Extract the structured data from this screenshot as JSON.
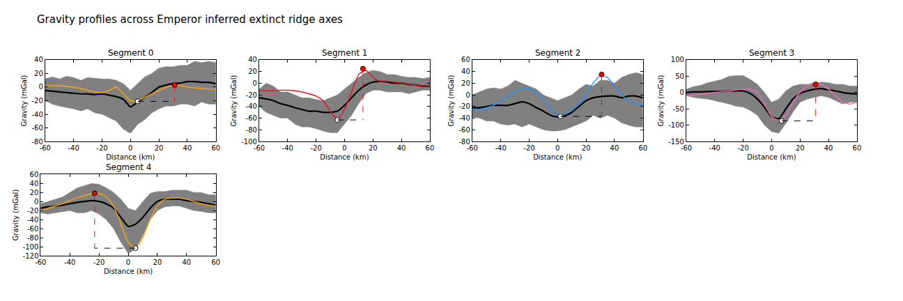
{
  "title": "Gravity profiles across Emperor inferred extinct ridge axes",
  "chart_data": [
    {
      "type": "line",
      "title": "Segment 0",
      "x_label": "Distance (km)",
      "y_label": "Gravity (mGal)",
      "xlim": [
        -60,
        60
      ],
      "xticks": [
        -60,
        -40,
        -20,
        0,
        20,
        40,
        60
      ],
      "ylim": [
        -80,
        40
      ],
      "yticks": [
        -80,
        -60,
        -40,
        -20,
        0,
        20,
        40
      ],
      "x": [
        -60,
        -55,
        -50,
        -45,
        -40,
        -35,
        -30,
        -25,
        -20,
        -15,
        -10,
        -5,
        0,
        5,
        10,
        15,
        20,
        25,
        30,
        35,
        40,
        45,
        50,
        55,
        60
      ],
      "series": [
        {
          "type": "band",
          "color": "#808080",
          "lower": [
            -20,
            -25,
            -28,
            -30,
            -32,
            -35,
            -32,
            -38,
            -40,
            -45,
            -50,
            -62,
            -68,
            -55,
            -48,
            -38,
            -32,
            -28,
            -28,
            -25,
            -25,
            -28,
            -22,
            -25,
            -25
          ],
          "upper": [
            12,
            15,
            12,
            16,
            14,
            10,
            14,
            13,
            12,
            12,
            10,
            5,
            -5,
            5,
            15,
            20,
            28,
            30,
            30,
            32,
            32,
            38,
            36,
            38,
            36
          ]
        },
        {
          "type": "line",
          "color": "#000000",
          "values": [
            -5,
            -6,
            -7,
            -8,
            -9,
            -10,
            -10,
            -11,
            -10,
            -12,
            -14,
            -18,
            -29,
            -22,
            -15,
            -8,
            0,
            3,
            5,
            6,
            8,
            8,
            7,
            7,
            5
          ]
        },
        {
          "type": "line",
          "color": "#ffa500",
          "values": [
            2,
            2,
            2,
            1,
            0,
            -2,
            -5,
            -7,
            -8,
            -5,
            0,
            -10,
            -20,
            -20,
            -15,
            -10,
            -5,
            0,
            2,
            2,
            0,
            -1,
            -2,
            -3,
            -3
          ]
        },
        {
          "type": "scatter",
          "x": [
            31,
            5
          ],
          "values": [
            3,
            -21
          ],
          "colors": [
            "#ff0000",
            "#ffffff"
          ],
          "line_style": "dashed"
        }
      ]
    },
    {
      "type": "line",
      "title": "Segment 1",
      "x_label": "Distance (km)",
      "y_label": "Gravity (mGal)",
      "xlim": [
        -60,
        60
      ],
      "xticks": [
        -60,
        -40,
        -20,
        0,
        20,
        40,
        60
      ],
      "ylim": [
        -100,
        40
      ],
      "yticks": [
        -100,
        -80,
        -60,
        -40,
        -20,
        0,
        20,
        40
      ],
      "x": [
        -60,
        -55,
        -50,
        -45,
        -40,
        -35,
        -30,
        -25,
        -20,
        -15,
        -10,
        -5,
        0,
        5,
        10,
        15,
        20,
        25,
        30,
        35,
        40,
        45,
        50,
        55,
        60
      ],
      "series": [
        {
          "type": "band",
          "color": "#808080",
          "lower": [
            -40,
            -50,
            -55,
            -60,
            -60,
            -70,
            -75,
            -75,
            -78,
            -82,
            -85,
            -85,
            -70,
            -55,
            -35,
            -18,
            -12,
            -12,
            -15,
            -15,
            -15,
            -18,
            -15,
            -12,
            -12
          ],
          "upper": [
            -10,
            0,
            -5,
            -15,
            -15,
            -20,
            -25,
            -25,
            -28,
            -30,
            -25,
            -20,
            -10,
            0,
            10,
            18,
            22,
            20,
            15,
            15,
            12,
            10,
            10,
            8,
            10
          ]
        },
        {
          "type": "line",
          "color": "#000000",
          "values": [
            -25,
            -27,
            -30,
            -35,
            -38,
            -42,
            -45,
            -48,
            -48,
            -50,
            -50,
            -48,
            -38,
            -25,
            -12,
            -3,
            2,
            3,
            2,
            0,
            0,
            -2,
            -3,
            -5,
            -5
          ]
        },
        {
          "type": "line",
          "color": "#e8101a",
          "values": [
            -12,
            -13,
            -13,
            -12,
            -12,
            -13,
            -15,
            -18,
            -22,
            -30,
            -48,
            -62,
            -45,
            -15,
            15,
            22,
            10,
            3,
            3,
            2,
            0,
            -2,
            -3,
            -4,
            -5
          ]
        },
        {
          "type": "scatter",
          "x": [
            13,
            -5
          ],
          "values": [
            25,
            -63
          ],
          "colors": [
            "#ff0000",
            "#ffffff"
          ],
          "line_style": "dashed"
        }
      ]
    },
    {
      "type": "line",
      "title": "Segment 2",
      "x_label": "Distance (km)",
      "y_label": "Gravity (mGal)",
      "xlim": [
        -60,
        60
      ],
      "xticks": [
        -60,
        -40,
        -20,
        0,
        20,
        40,
        60
      ],
      "ylim": [
        -80,
        60
      ],
      "yticks": [
        -80,
        -60,
        -40,
        -20,
        0,
        20,
        40,
        60
      ],
      "x": [
        -60,
        -55,
        -50,
        -45,
        -40,
        -35,
        -30,
        -25,
        -20,
        -15,
        -10,
        -5,
        0,
        5,
        10,
        15,
        20,
        25,
        30,
        35,
        40,
        45,
        50,
        55,
        60
      ],
      "series": [
        {
          "type": "band",
          "color": "#808080",
          "lower": [
            -38,
            -40,
            -45,
            -45,
            -50,
            -52,
            -50,
            -55,
            -50,
            -55,
            -60,
            -62,
            -62,
            -60,
            -55,
            -50,
            -45,
            -35,
            -40,
            -35,
            -40,
            -48,
            -52,
            -55,
            -55
          ],
          "upper": [
            0,
            5,
            10,
            12,
            10,
            15,
            25,
            20,
            15,
            10,
            0,
            -5,
            -10,
            -5,
            0,
            10,
            18,
            15,
            25,
            25,
            20,
            30,
            35,
            38,
            35
          ]
        },
        {
          "type": "line",
          "color": "#000000",
          "values": [
            -22,
            -22,
            -20,
            -18,
            -18,
            -18,
            -15,
            -12,
            -15,
            -22,
            -28,
            -35,
            -38,
            -36,
            -30,
            -20,
            -10,
            -5,
            -3,
            -2,
            -2,
            -5,
            -2,
            -2,
            -5
          ]
        },
        {
          "type": "line",
          "color": "#1e90ff",
          "values": [
            -25,
            -25,
            -22,
            -18,
            -10,
            -2,
            5,
            10,
            11,
            5,
            -8,
            -25,
            -35,
            -32,
            -25,
            -15,
            0,
            20,
            33,
            30,
            15,
            0,
            -10,
            -15,
            -18
          ]
        },
        {
          "type": "scatter",
          "x": [
            31,
            2
          ],
          "values": [
            35,
            -37
          ],
          "colors": [
            "#ff0000",
            "#ffffff"
          ],
          "line_style": "dashed"
        }
      ]
    },
    {
      "type": "line",
      "title": "Segment 3",
      "x_label": "Distance (km)",
      "y_label": "Gravity (mGal)",
      "xlim": [
        -60,
        60
      ],
      "xticks": [
        -60,
        -40,
        -20,
        0,
        20,
        40,
        60
      ],
      "ylim": [
        -150,
        100
      ],
      "yticks": [
        -150,
        -100,
        -50,
        0,
        50,
        100
      ],
      "x": [
        -60,
        -55,
        -50,
        -45,
        -40,
        -35,
        -30,
        -25,
        -20,
        -15,
        -10,
        -5,
        0,
        5,
        10,
        15,
        20,
        25,
        30,
        35,
        40,
        45,
        50,
        55,
        60
      ],
      "series": [
        {
          "type": "band",
          "color": "#808080",
          "lower": [
            -10,
            -15,
            -18,
            -20,
            -25,
            -30,
            -35,
            -42,
            -45,
            -55,
            -70,
            -100,
            -120,
            -125,
            -95,
            -60,
            -30,
            -20,
            -15,
            -10,
            -15,
            -25,
            -35,
            -30,
            -30
          ],
          "upper": [
            10,
            18,
            22,
            30,
            35,
            40,
            50,
            52,
            52,
            40,
            25,
            0,
            -30,
            -20,
            5,
            20,
            25,
            25,
            28,
            32,
            30,
            25,
            25,
            20,
            20
          ]
        },
        {
          "type": "line",
          "color": "#000000",
          "values": [
            0,
            2,
            2,
            3,
            3,
            3,
            5,
            5,
            5,
            -3,
            -20,
            -45,
            -75,
            -80,
            -50,
            -20,
            -3,
            5,
            10,
            12,
            8,
            5,
            0,
            -3,
            -5
          ]
        },
        {
          "type": "line",
          "color": "#ff69b4",
          "values": [
            -10,
            -8,
            -5,
            -3,
            0,
            3,
            5,
            8,
            10,
            10,
            0,
            -35,
            -75,
            -85,
            -70,
            -30,
            0,
            20,
            30,
            25,
            10,
            -10,
            -30,
            -35,
            -30
          ]
        },
        {
          "type": "scatter",
          "x": [
            31,
            7
          ],
          "values": [
            25,
            -87
          ],
          "colors": [
            "#ff0000",
            "#ffffff"
          ],
          "line_style": "dashed"
        }
      ]
    },
    {
      "type": "line",
      "title": "Segment 4",
      "x_label": "Distance (km)",
      "y_label": "Gravity (mGal)",
      "xlim": [
        -60,
        60
      ],
      "xticks": [
        -60,
        -40,
        -20,
        0,
        20,
        40,
        60
      ],
      "ylim": [
        -120,
        60
      ],
      "yticks": [
        -120,
        -100,
        -80,
        -60,
        -40,
        -20,
        0,
        20,
        40,
        60
      ],
      "x": [
        -60,
        -55,
        -50,
        -45,
        -40,
        -35,
        -30,
        -25,
        -20,
        -15,
        -10,
        -5,
        0,
        5,
        10,
        15,
        20,
        25,
        30,
        35,
        40,
        45,
        50,
        55,
        60
      ],
      "series": [
        {
          "type": "band",
          "color": "#808080",
          "lower": [
            -25,
            -28,
            -25,
            -22,
            -20,
            -25,
            -25,
            -20,
            -28,
            -40,
            -60,
            -90,
            -115,
            -105,
            -75,
            -40,
            -20,
            -12,
            -10,
            -10,
            -15,
            -20,
            -22,
            -25,
            -25
          ],
          "upper": [
            -5,
            0,
            5,
            10,
            20,
            30,
            35,
            40,
            38,
            30,
            20,
            5,
            -15,
            -20,
            0,
            18,
            22,
            22,
            25,
            25,
            25,
            20,
            20,
            15,
            15
          ]
        },
        {
          "type": "line",
          "color": "#000000",
          "values": [
            -15,
            -12,
            -10,
            -8,
            -5,
            -2,
            0,
            2,
            0,
            -5,
            -15,
            -35,
            -55,
            -50,
            -35,
            -15,
            0,
            5,
            5,
            5,
            2,
            0,
            -2,
            -5,
            -8
          ]
        },
        {
          "type": "line",
          "color": "#ffa500",
          "values": [
            -20,
            -15,
            -10,
            -5,
            2,
            8,
            13,
            18,
            18,
            10,
            -10,
            -50,
            -90,
            -102,
            -80,
            -40,
            -10,
            5,
            8,
            8,
            5,
            0,
            -5,
            -8,
            -10
          ]
        },
        {
          "type": "scatter",
          "x": [
            -23,
            5
          ],
          "values": [
            18,
            -103
          ],
          "colors": [
            "#ff0000",
            "#ffffff"
          ],
          "line_style": "dashed"
        }
      ]
    }
  ]
}
